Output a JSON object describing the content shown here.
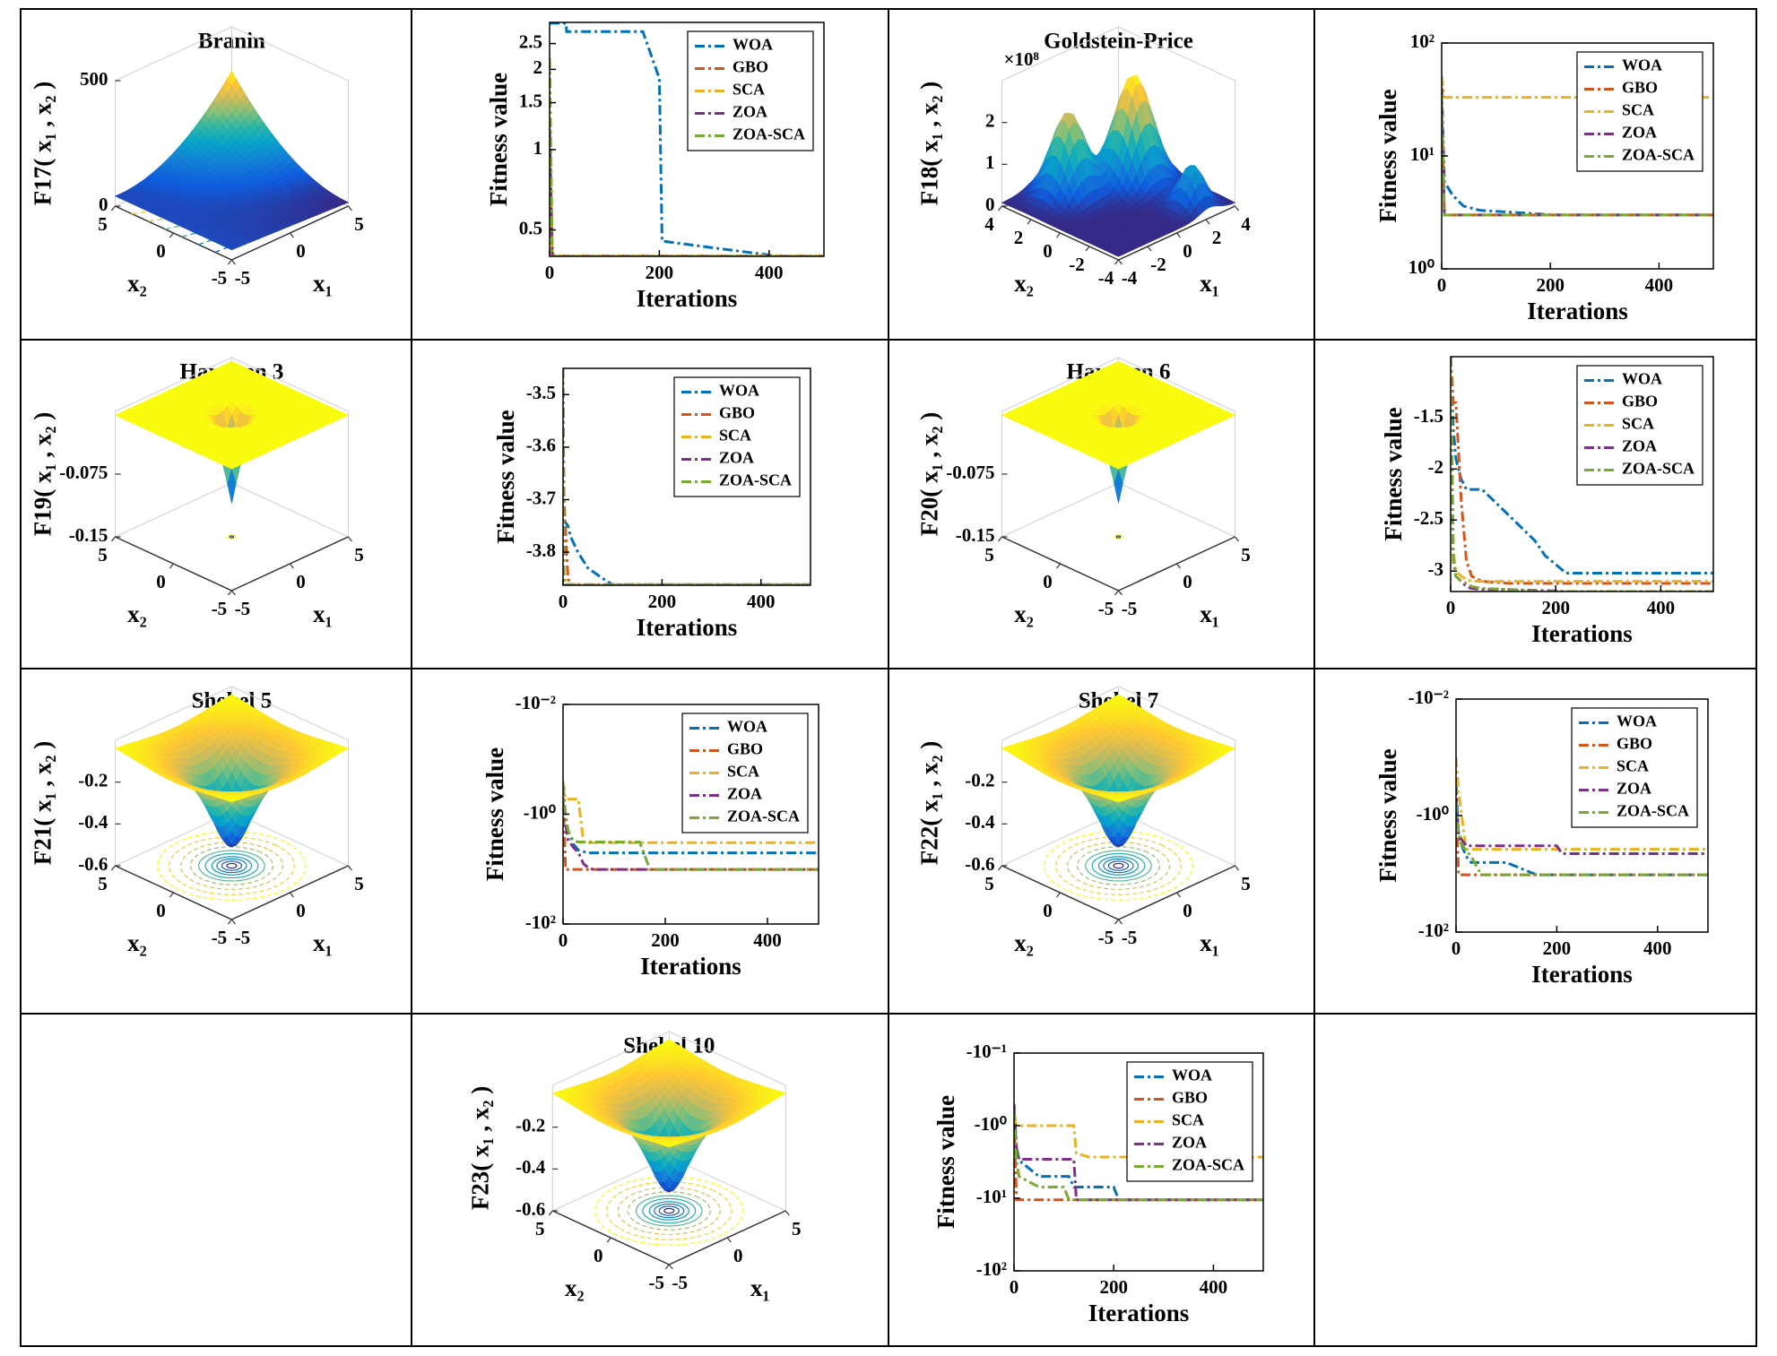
{
  "chart_data": [
    {
      "type": "surface",
      "title": "Branin",
      "zlabel": "F17( x₁ , x₂ )",
      "xlabel": "x₁",
      "ylabel": "x₂",
      "x1lim": [
        -5,
        5
      ],
      "x1ticks": [
        -5,
        0,
        5
      ],
      "x2lim": [
        -5,
        5
      ],
      "x2ticks": [
        -5,
        0,
        5
      ],
      "zlim": [
        0,
        500
      ],
      "zticks": [
        0,
        500
      ]
    },
    {
      "type": "line",
      "xlabel": "Iterations",
      "ylabel": "Fitness value",
      "yscale": "log",
      "legend": "upper right",
      "x": [
        0,
        5,
        10,
        30,
        31,
        170,
        200,
        205,
        330,
        420,
        500
      ],
      "xlim": [
        0,
        500
      ],
      "xticks": [
        0,
        200,
        400
      ],
      "ylim": [
        0.398,
        3.0
      ],
      "yticks": [
        0.5,
        1,
        1.5,
        2,
        2.5
      ],
      "series": [
        {
          "name": "WOA",
          "color": "#0072bd",
          "values": [
            2.98,
            2.98,
            2.98,
            2.98,
            2.77,
            2.77,
            1.85,
            0.454,
            0.42,
            0.398,
            0.398
          ]
        },
        {
          "name": "GBO",
          "color": "#d95319",
          "values": [
            0.6,
            0.398,
            0.398,
            0.398,
            0.398,
            0.398,
            0.398,
            0.398,
            0.398,
            0.398,
            0.398
          ]
        },
        {
          "name": "SCA",
          "color": "#edb120",
          "values": [
            0.9,
            0.41,
            0.4,
            0.4,
            0.4,
            0.4,
            0.4,
            0.4,
            0.4,
            0.4,
            0.4
          ]
        },
        {
          "name": "ZOA",
          "color": "#7e2f8e",
          "values": [
            1.2,
            0.398,
            0.398,
            0.398,
            0.398,
            0.398,
            0.398,
            0.398,
            0.398,
            0.398,
            0.398
          ]
        },
        {
          "name": "ZOA-SCA",
          "color": "#77ac30",
          "values": [
            2.2,
            0.398,
            0.398,
            0.398,
            0.398,
            0.398,
            0.398,
            0.398,
            0.398,
            0.398,
            0.398
          ]
        }
      ]
    },
    {
      "type": "surface",
      "title": "Goldstein-Price",
      "zlabel": "F18( x₁ , x₂ )",
      "zexponent": "×10⁸",
      "xlabel": "x₁",
      "ylabel": "x₂",
      "x1lim": [
        -4,
        4
      ],
      "x1ticks": [
        -4,
        -2,
        0,
        2,
        4
      ],
      "x2lim": [
        -4,
        4
      ],
      "x2ticks": [
        -4,
        -2,
        0,
        2,
        4
      ],
      "zlim": [
        0,
        3
      ],
      "zticks": [
        0,
        1,
        2
      ]
    },
    {
      "type": "line",
      "xlabel": "Iterations",
      "ylabel": "Fitness value",
      "yscale": "log",
      "legend": "upper right",
      "x": [
        0,
        5,
        20,
        40,
        70,
        210,
        500
      ],
      "xlim": [
        0,
        500
      ],
      "xticks": [
        0,
        200,
        400
      ],
      "ylim": [
        1,
        100
      ],
      "yticks": [
        {
          "value": 1,
          "label": "10⁰"
        },
        {
          "value": 10,
          "label": "10¹"
        },
        {
          "value": 100,
          "label": "10²"
        }
      ],
      "series": [
        {
          "name": "WOA",
          "color": "#0072bd",
          "values": [
            40,
            5.9,
            4.5,
            3.6,
            3.3,
            3.0,
            3.0
          ]
        },
        {
          "name": "GBO",
          "color": "#d95319",
          "values": [
            30,
            3,
            3,
            3,
            3,
            3,
            3
          ]
        },
        {
          "name": "SCA",
          "color": "#edb120",
          "values": [
            51,
            33,
            33,
            33,
            33,
            33,
            33
          ]
        },
        {
          "name": "ZOA",
          "color": "#7e2f8e",
          "values": [
            40,
            3,
            3,
            3,
            3,
            3,
            3
          ]
        },
        {
          "name": "ZOA-SCA",
          "color": "#77ac30",
          "values": [
            35,
            3,
            3,
            3,
            3,
            3,
            3
          ]
        }
      ]
    },
    {
      "type": "surface",
      "title": "Hartmen 3",
      "zlabel": "F19( x₁ , x₂ )",
      "xlabel": "x₁",
      "ylabel": "x₂",
      "x1lim": [
        -5,
        5
      ],
      "x1ticks": [
        -5,
        0,
        5
      ],
      "x2lim": [
        -5,
        5
      ],
      "x2ticks": [
        -5,
        0,
        5
      ],
      "zlim": [
        -0.15,
        0
      ],
      "zticks": [
        -0.15,
        -0.075
      ]
    },
    {
      "type": "line",
      "xlabel": "Iterations",
      "ylabel": "Fitness value",
      "legend": "upper right",
      "x": [
        0,
        2,
        10,
        15,
        30,
        50,
        80,
        100,
        500
      ],
      "xlim": [
        0,
        500
      ],
      "xticks": [
        0,
        200,
        400
      ],
      "ylim": [
        -3.863,
        -3.45
      ],
      "yticks": [
        -3.8,
        -3.7,
        -3.6,
        -3.5
      ],
      "series": [
        {
          "name": "WOA",
          "color": "#0072bd",
          "values": [
            -3.74,
            -3.74,
            -3.75,
            -3.77,
            -3.8,
            -3.83,
            -3.85,
            -3.862,
            -3.862
          ]
        },
        {
          "name": "GBO",
          "color": "#d95319",
          "values": [
            -3.45,
            -3.7,
            -3.85,
            -3.862,
            -3.862,
            -3.862,
            -3.862,
            -3.862,
            -3.862
          ]
        },
        {
          "name": "SCA",
          "color": "#edb120",
          "values": [
            -3.45,
            -3.84,
            -3.86,
            -3.862,
            -3.862,
            -3.862,
            -3.862,
            -3.862,
            -3.862
          ]
        },
        {
          "name": "ZOA",
          "color": "#7e2f8e",
          "values": [
            -3.45,
            -3.862,
            -3.862,
            -3.862,
            -3.862,
            -3.862,
            -3.862,
            -3.862,
            -3.862
          ]
        },
        {
          "name": "ZOA-SCA",
          "color": "#77ac30",
          "values": [
            -3.45,
            -3.862,
            -3.862,
            -3.862,
            -3.862,
            -3.862,
            -3.862,
            -3.862,
            -3.862
          ]
        }
      ]
    },
    {
      "type": "surface",
      "title": "Hartmen 6",
      "zlabel": "F20( x₁ , x₂ )",
      "xlabel": "x₁",
      "ylabel": "x₂",
      "x1lim": [
        -5,
        5
      ],
      "x1ticks": [
        -5,
        0,
        5
      ],
      "x2lim": [
        -5,
        5
      ],
      "x2ticks": [
        -5,
        0,
        5
      ],
      "zlim": [
        -0.15,
        0
      ],
      "zticks": [
        -0.15,
        -0.075
      ]
    },
    {
      "type": "line",
      "xlabel": "Iterations",
      "ylabel": "Fitness value",
      "legend": "upper right",
      "x": [
        0,
        5,
        10,
        20,
        30,
        40,
        60,
        110,
        160,
        180,
        220,
        250,
        500
      ],
      "xlim": [
        0,
        500
      ],
      "xticks": [
        0,
        200,
        400
      ],
      "ylim": [
        -3.2,
        -0.9
      ],
      "yticks": [
        -3,
        -2.5,
        -2,
        -1.5
      ],
      "series": [
        {
          "name": "WOA",
          "color": "#0072bd",
          "values": [
            -0.9,
            -1.6,
            -1.9,
            -2.1,
            -2.2,
            -2.2,
            -2.2,
            -2.45,
            -2.7,
            -2.85,
            -3.02,
            -3.02,
            -3.02
          ]
        },
        {
          "name": "GBO",
          "color": "#d95319",
          "values": [
            -0.9,
            -1.35,
            -1.35,
            -2.3,
            -2.9,
            -3.05,
            -3.1,
            -3.12,
            -3.12,
            -3.12,
            -3.12,
            -3.12,
            -3.12
          ]
        },
        {
          "name": "SCA",
          "color": "#edb120",
          "values": [
            -0.9,
            -2.8,
            -3.0,
            -3.05,
            -3.08,
            -3.1,
            -3.1,
            -3.1,
            -3.1,
            -3.1,
            -3.1,
            -3.1,
            -3.1
          ]
        },
        {
          "name": "ZOA",
          "color": "#7e2f8e",
          "values": [
            -0.9,
            -2.9,
            -3.05,
            -3.1,
            -3.15,
            -3.17,
            -3.18,
            -3.18,
            -3.19,
            -3.19,
            -3.2,
            -3.2,
            -3.2
          ]
        },
        {
          "name": "ZOA-SCA",
          "color": "#77ac30",
          "values": [
            -0.9,
            -2.9,
            -3.05,
            -3.1,
            -3.12,
            -3.15,
            -3.17,
            -3.18,
            -3.2,
            -3.2,
            -3.2,
            -3.2,
            -3.2
          ]
        }
      ]
    },
    {
      "type": "surface",
      "title": "Shekel 5",
      "zlabel": "F21( x₁ , x₂ )",
      "xlabel": "x₁",
      "ylabel": "x₂",
      "x1lim": [
        -5,
        5
      ],
      "x1ticks": [
        -5,
        0,
        5
      ],
      "x2lim": [
        -5,
        5
      ],
      "x2ticks": [
        -5,
        0,
        5
      ],
      "zlim": [
        -0.6,
        0
      ],
      "zticks": [
        -0.6,
        -0.4,
        -0.2
      ]
    },
    {
      "type": "line",
      "xlabel": "Iterations",
      "ylabel": "Fitness value",
      "yscale": "log",
      "legend": "upper right",
      "x": [
        0,
        5,
        10,
        20,
        30,
        40,
        50,
        60,
        80,
        100,
        150,
        170,
        500
      ],
      "xlim": [
        0,
        500
      ],
      "xticks": [
        0,
        200,
        400
      ],
      "ylim": [
        -100,
        -0.01
      ],
      "yticks": [
        {
          "value": -100,
          "label": "-10²"
        },
        {
          "value": -1,
          "label": "-10⁰"
        },
        {
          "value": -0.01,
          "label": "-10⁻²"
        }
      ],
      "series": [
        {
          "name": "WOA",
          "color": "#0072bd",
          "values": [
            -0.3,
            -1.2,
            -2.0,
            -3.5,
            -4.5,
            -4.8,
            -5.06,
            -5.06,
            -5.06,
            -5.06,
            -5.06,
            -5.06,
            -5.06
          ]
        },
        {
          "name": "GBO",
          "color": "#d95319",
          "values": [
            -0.5,
            -10.15,
            -10.15,
            -10.15,
            -10.15,
            -10.15,
            -10.15,
            -10.15,
            -10.15,
            -10.15,
            -10.15,
            -10.15,
            -10.15
          ]
        },
        {
          "name": "SCA",
          "color": "#edb120",
          "values": [
            -0.25,
            -0.53,
            -0.53,
            -0.53,
            -0.53,
            -3.2,
            -3.3,
            -3.3,
            -3.3,
            -3.3,
            -3.3,
            -3.3,
            -3.3
          ]
        },
        {
          "name": "ZOA",
          "color": "#7e2f8e",
          "values": [
            -0.3,
            -1.5,
            -3,
            -4,
            -5,
            -8,
            -9.5,
            -10.15,
            -10.15,
            -10.15,
            -10.15,
            -10.15,
            -10.15
          ]
        },
        {
          "name": "ZOA-SCA",
          "color": "#77ac30",
          "values": [
            -0.3,
            -1.0,
            -2.0,
            -3.0,
            -3.2,
            -3.2,
            -3.2,
            -3.2,
            -3.2,
            -3.2,
            -3.2,
            -10.15,
            -10.15
          ]
        }
      ]
    },
    {
      "type": "surface",
      "title": "Shekel 7",
      "zlabel": "F22( x₁ , x₂ )",
      "xlabel": "x₁",
      "ylabel": "x₂",
      "x1lim": [
        -5,
        5
      ],
      "x1ticks": [
        -5,
        0,
        5
      ],
      "x2lim": [
        -5,
        5
      ],
      "x2ticks": [
        -5,
        0,
        5
      ],
      "zlim": [
        -0.6,
        0
      ],
      "zticks": [
        -0.6,
        -0.4,
        -0.2
      ]
    },
    {
      "type": "line",
      "xlabel": "Iterations",
      "ylabel": "Fitness value",
      "yscale": "log",
      "legend": "upper right",
      "x": [
        0,
        5,
        10,
        20,
        30,
        50,
        100,
        160,
        200,
        210,
        500
      ],
      "xlim": [
        0,
        500
      ],
      "xticks": [
        0,
        200,
        400
      ],
      "ylim": [
        -100,
        -0.01
      ],
      "yticks": [
        {
          "value": -100,
          "label": "-10²"
        },
        {
          "value": -1,
          "label": "-10⁰"
        },
        {
          "value": -0.01,
          "label": "-10⁻²"
        }
      ],
      "series": [
        {
          "name": "WOA",
          "color": "#0072bd",
          "values": [
            -0.3,
            -2,
            -3,
            -5,
            -6.4,
            -6.4,
            -6.4,
            -10.4,
            -10.4,
            -10.4,
            -10.4
          ]
        },
        {
          "name": "GBO",
          "color": "#d95319",
          "values": [
            -0.5,
            -10.4,
            -10.4,
            -10.4,
            -10.4,
            -10.4,
            -10.4,
            -10.4,
            -10.4,
            -10.4,
            -10.4
          ]
        },
        {
          "name": "SCA",
          "color": "#edb120",
          "values": [
            -0.1,
            -0.4,
            -0.8,
            -3.8,
            -3.8,
            -3.8,
            -3.8,
            -3.8,
            -3.8,
            -3.8,
            -3.8
          ]
        },
        {
          "name": "ZOA",
          "color": "#7e2f8e",
          "values": [
            -0.5,
            -2,
            -2.5,
            -3.3,
            -3.3,
            -3.3,
            -3.3,
            -3.3,
            -3.3,
            -4.5,
            -4.5
          ]
        },
        {
          "name": "ZOA-SCA",
          "color": "#77ac30",
          "values": [
            -0.6,
            -2,
            -3,
            -4,
            -5,
            -10.4,
            -10.4,
            -10.4,
            -10.4,
            -10.4,
            -10.4
          ]
        }
      ]
    },
    {
      "type": "surface",
      "title": "Shekel 10",
      "zlabel": "F23( x₁ , x₂ )",
      "xlabel": "x₁",
      "ylabel": "x₂",
      "x1lim": [
        -5,
        5
      ],
      "x1ticks": [
        -5,
        0,
        5
      ],
      "x2lim": [
        -5,
        5
      ],
      "x2ticks": [
        -5,
        0,
        5
      ],
      "zlim": [
        -0.6,
        0
      ],
      "zticks": [
        -0.6,
        -0.4,
        -0.2
      ]
    },
    {
      "type": "line",
      "xlabel": "Iterations",
      "ylabel": "Fitness value",
      "yscale": "log",
      "legend": "upper right",
      "x": [
        0,
        5,
        10,
        50,
        100,
        110,
        120,
        125,
        150,
        200,
        210,
        500
      ],
      "xlim": [
        0,
        500
      ],
      "xticks": [
        0,
        200,
        400
      ],
      "ylim": [
        -100,
        -0.1
      ],
      "yticks": [
        {
          "value": -100,
          "label": "-10²"
        },
        {
          "value": -10,
          "label": "-10¹"
        },
        {
          "value": -1,
          "label": "-10⁰"
        },
        {
          "value": -0.1,
          "label": "-10⁻¹"
        }
      ],
      "series": [
        {
          "name": "WOA",
          "color": "#0072bd",
          "values": [
            -0.6,
            -2,
            -3,
            -5,
            -5,
            -5,
            -7,
            -7,
            -7,
            -7,
            -10.5,
            -10.5
          ]
        },
        {
          "name": "GBO",
          "color": "#d95319",
          "values": [
            -0.8,
            -10.5,
            -10.5,
            -10.5,
            -10.5,
            -10.5,
            -10.5,
            -10.5,
            -10.5,
            -10.5,
            -10.5,
            -10.5
          ]
        },
        {
          "name": "SCA",
          "color": "#edb120",
          "values": [
            -0.75,
            -1.0,
            -1.0,
            -1.0,
            -1.0,
            -1.0,
            -1.0,
            -2.4,
            -2.7,
            -2.7,
            -2.7,
            -2.7
          ]
        },
        {
          "name": "ZOA",
          "color": "#7e2f8e",
          "values": [
            -0.5,
            -2,
            -2.9,
            -2.9,
            -2.9,
            -2.9,
            -2.9,
            -10.5,
            -10.5,
            -10.5,
            -10.5,
            -10.5
          ]
        },
        {
          "name": "ZOA-SCA",
          "color": "#77ac30",
          "values": [
            -0.6,
            -3,
            -5,
            -7,
            -7,
            -10.5,
            -10.5,
            -10.5,
            -10.5,
            -10.5,
            -10.5,
            -10.5
          ]
        }
      ]
    }
  ]
}
